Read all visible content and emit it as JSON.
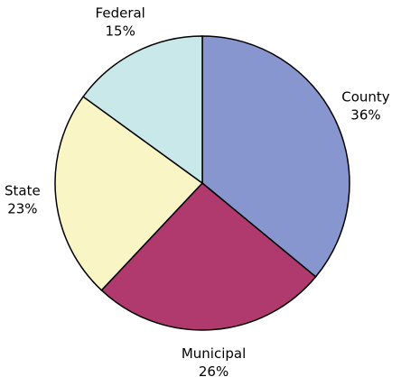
{
  "chart_data": {
    "type": "pie",
    "categories": [
      "County",
      "Municipal",
      "State",
      "Federal"
    ],
    "values": [
      36,
      26,
      23,
      15
    ],
    "value_labels": [
      "36%",
      "26%",
      "23%",
      "15%"
    ],
    "colors": [
      "#8896cf",
      "#b03a6e",
      "#faf5c4",
      "#c8e8ea"
    ]
  }
}
